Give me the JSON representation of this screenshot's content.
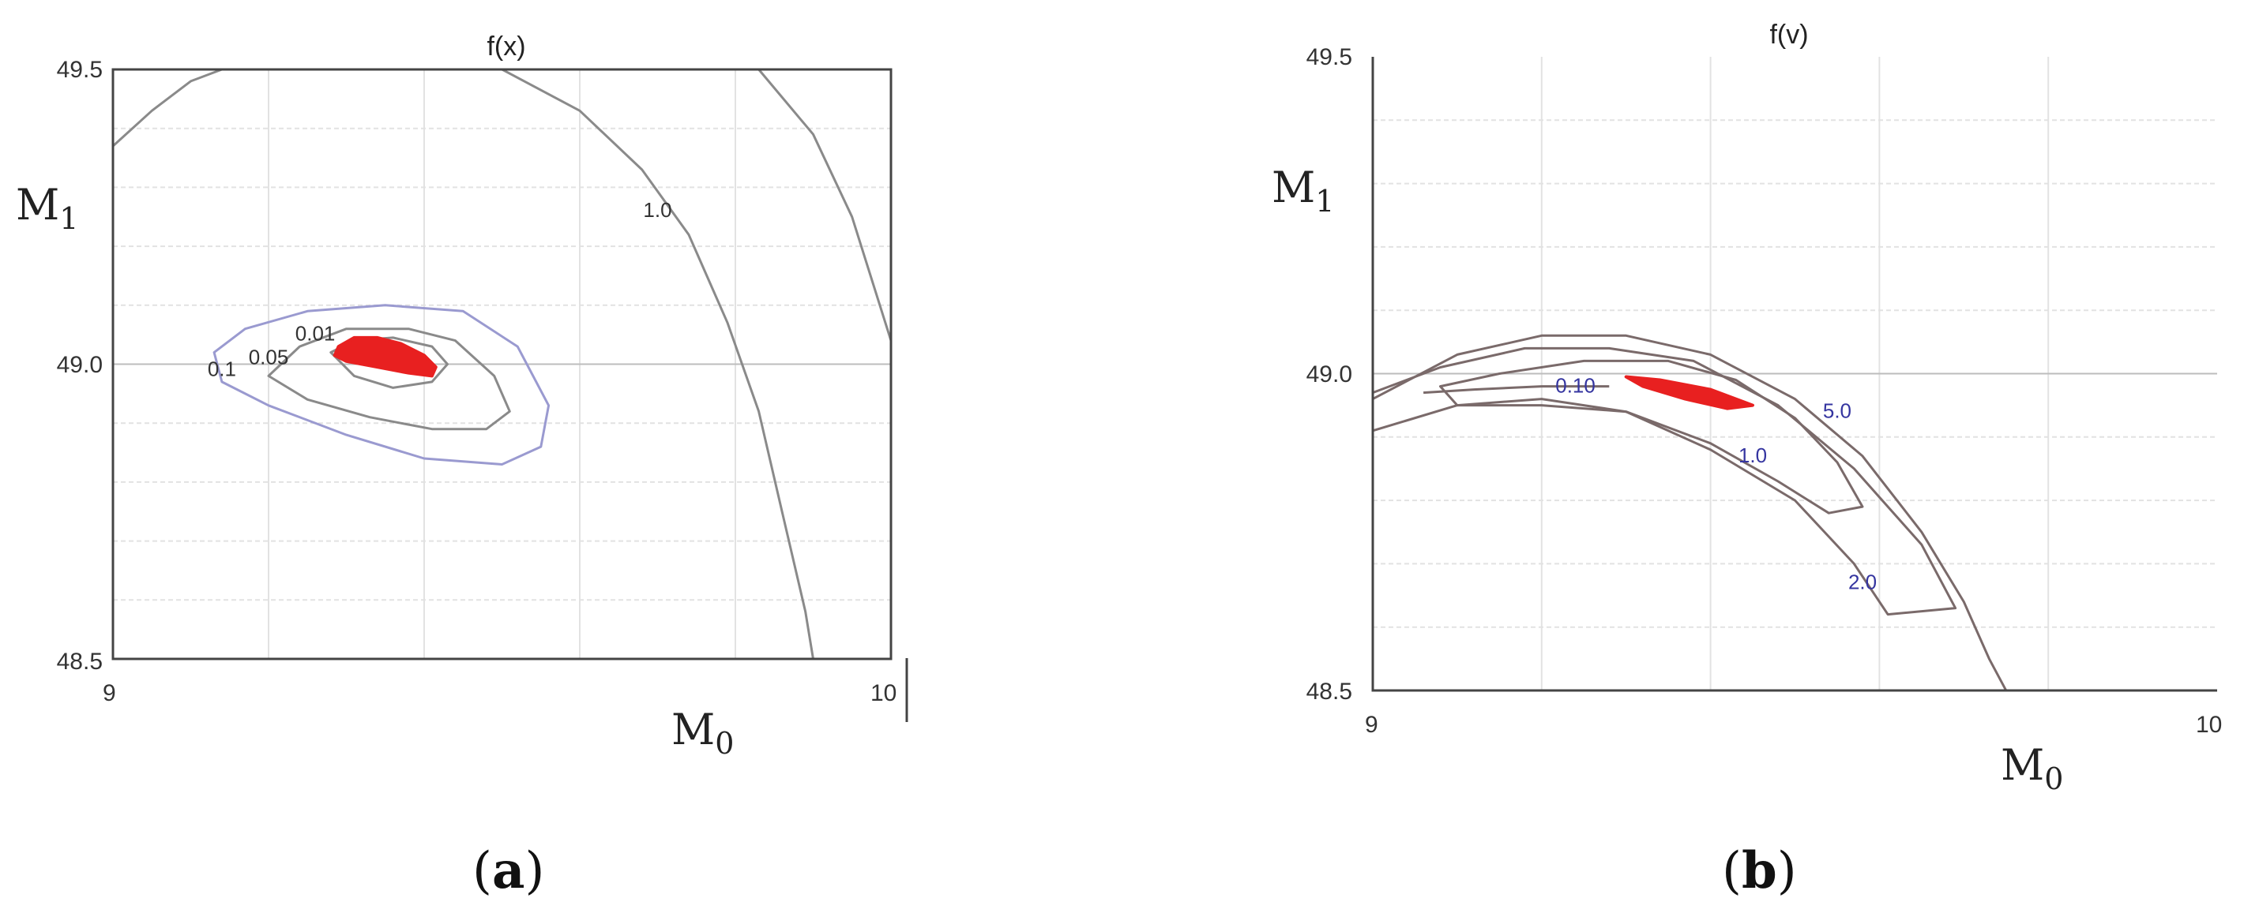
{
  "chart_data": [
    {
      "type": "contour",
      "panel_label": "a",
      "title": "f(x)",
      "xlabel": "M",
      "xlabel_sub": "0",
      "ylabel": "M",
      "ylabel_sub": "1",
      "xlim": [
        9,
        10
      ],
      "ylim": [
        48.5,
        49.5
      ],
      "x_ticks": [
        "9",
        "10"
      ],
      "y_ticks": [
        "49.5",
        "49.0",
        "48.5"
      ],
      "grid": true,
      "contours": [
        {
          "level": "1.0",
          "color": "#8a8a8a",
          "points": [
            [
              9.0,
              49.37
            ],
            [
              9.05,
              49.43
            ],
            [
              9.1,
              49.48
            ],
            [
              9.14,
              49.5
            ]
          ]
        },
        {
          "level": "1.0",
          "color": "#8a8a8a",
          "points": [
            [
              9.5,
              49.5
            ],
            [
              9.6,
              49.43
            ],
            [
              9.68,
              49.33
            ],
            [
              9.74,
              49.22
            ],
            [
              9.79,
              49.07
            ],
            [
              9.83,
              48.92
            ],
            [
              9.86,
              48.75
            ],
            [
              9.89,
              48.58
            ],
            [
              9.9,
              48.5
            ]
          ]
        },
        {
          "level": "",
          "color": "#8a8a8a",
          "points": [
            [
              9.83,
              49.5
            ],
            [
              9.9,
              49.39
            ],
            [
              9.95,
              49.25
            ],
            [
              10.0,
              49.04
            ]
          ]
        },
        {
          "level": "0.1",
          "color": "#9a9ad0",
          "closed": true,
          "points": [
            [
              9.13,
              49.02
            ],
            [
              9.17,
              49.06
            ],
            [
              9.25,
              49.09
            ],
            [
              9.35,
              49.1
            ],
            [
              9.45,
              49.09
            ],
            [
              9.52,
              49.03
            ],
            [
              9.56,
              48.93
            ],
            [
              9.55,
              48.86
            ],
            [
              9.5,
              48.83
            ],
            [
              9.4,
              48.84
            ],
            [
              9.3,
              48.88
            ],
            [
              9.2,
              48.93
            ],
            [
              9.14,
              48.97
            ]
          ]
        },
        {
          "level": "0.05",
          "color": "#8a8a8a",
          "closed": true,
          "points": [
            [
              9.2,
              48.98
            ],
            [
              9.24,
              49.03
            ],
            [
              9.3,
              49.06
            ],
            [
              9.38,
              49.06
            ],
            [
              9.44,
              49.04
            ],
            [
              9.49,
              48.98
            ],
            [
              9.51,
              48.92
            ],
            [
              9.48,
              48.89
            ],
            [
              9.41,
              48.89
            ],
            [
              9.33,
              48.91
            ],
            [
              9.25,
              48.94
            ]
          ]
        },
        {
          "level": "0.01",
          "color": "#8a8a8a",
          "closed": true,
          "points": [
            [
              9.28,
              49.02
            ],
            [
              9.31,
              49.04
            ],
            [
              9.36,
              49.045
            ],
            [
              9.41,
              49.03
            ],
            [
              9.43,
              49.0
            ],
            [
              9.41,
              48.97
            ],
            [
              9.36,
              48.96
            ],
            [
              9.31,
              48.98
            ]
          ]
        }
      ],
      "contour_labels": [
        {
          "text": "1.0",
          "x": 9.7,
          "y": 49.25
        },
        {
          "text": "0.1",
          "x": 9.14,
          "y": 48.98
        },
        {
          "text": "0.05",
          "x": 9.2,
          "y": 49.0
        },
        {
          "text": "0.01",
          "x": 9.26,
          "y": 49.04
        }
      ],
      "region": {
        "color": "#e82020",
        "points": [
          [
            9.29,
            49.03
          ],
          [
            9.31,
            49.045
          ],
          [
            9.34,
            49.045
          ],
          [
            9.37,
            49.035
          ],
          [
            9.4,
            49.015
          ],
          [
            9.415,
            48.995
          ],
          [
            9.41,
            48.98
          ],
          [
            9.38,
            48.985
          ],
          [
            9.34,
            48.995
          ],
          [
            9.3,
            49.005
          ],
          [
            9.285,
            49.015
          ]
        ]
      }
    },
    {
      "type": "contour",
      "panel_label": "b",
      "title": "f(v)",
      "xlabel": "M",
      "xlabel_sub": "0",
      "ylabel": "M",
      "ylabel_sub": "1",
      "xlim": [
        9,
        10
      ],
      "ylim": [
        48.5,
        49.5
      ],
      "x_ticks": [
        "9",
        "10"
      ],
      "y_ticks": [
        "49.5",
        "49.0",
        "48.5"
      ],
      "grid": true,
      "contours": [
        {
          "level": "5.0",
          "color": "#7a6a6a",
          "points": [
            [
              9.0,
              48.96
            ],
            [
              9.1,
              49.03
            ],
            [
              9.2,
              49.06
            ],
            [
              9.3,
              49.06
            ],
            [
              9.4,
              49.03
            ],
            [
              9.5,
              48.96
            ],
            [
              9.58,
              48.87
            ],
            [
              9.65,
              48.75
            ],
            [
              9.7,
              48.64
            ],
            [
              9.73,
              48.55
            ],
            [
              9.75,
              48.5
            ]
          ]
        },
        {
          "level": "2.0",
          "color": "#7a6a6a",
          "points": [
            [
              9.0,
              48.91
            ],
            [
              9.1,
              48.95
            ],
            [
              9.2,
              48.96
            ],
            [
              9.3,
              48.94
            ],
            [
              9.4,
              48.88
            ],
            [
              9.5,
              48.8
            ],
            [
              9.57,
              48.7
            ],
            [
              9.61,
              48.62
            ],
            [
              9.69,
              48.63
            ],
            [
              9.65,
              48.73
            ],
            [
              9.57,
              48.85
            ],
            [
              9.48,
              48.95
            ],
            [
              9.38,
              49.02
            ],
            [
              9.28,
              49.04
            ],
            [
              9.18,
              49.04
            ],
            [
              9.08,
              49.01
            ],
            [
              9.0,
              48.97
            ]
          ]
        },
        {
          "level": "1.0",
          "color": "#7a6a6a",
          "closed": true,
          "points": [
            [
              9.08,
              48.98
            ],
            [
              9.15,
              49.0
            ],
            [
              9.25,
              49.02
            ],
            [
              9.35,
              49.02
            ],
            [
              9.43,
              48.99
            ],
            [
              9.5,
              48.93
            ],
            [
              9.55,
              48.86
            ],
            [
              9.58,
              48.79
            ],
            [
              9.54,
              48.78
            ],
            [
              9.48,
              48.83
            ],
            [
              9.4,
              48.89
            ],
            [
              9.3,
              48.94
            ],
            [
              9.2,
              48.95
            ],
            [
              9.1,
              48.95
            ]
          ]
        },
        {
          "level": "0.10",
          "color": "#7a6a6a",
          "points": [
            [
              9.06,
              48.97
            ],
            [
              9.12,
              48.975
            ],
            [
              9.2,
              48.98
            ],
            [
              9.28,
              48.98
            ]
          ]
        }
      ],
      "contour_labels": [
        {
          "text": "0.10",
          "x": 9.24,
          "y": 48.97
        },
        {
          "text": "5.0",
          "x": 9.55,
          "y": 48.93
        },
        {
          "text": "1.0",
          "x": 9.45,
          "y": 48.86
        },
        {
          "text": "2.0",
          "x": 9.58,
          "y": 48.66
        }
      ],
      "region": {
        "color": "#e82020",
        "points": [
          [
            9.3,
            48.995
          ],
          [
            9.34,
            48.99
          ],
          [
            9.4,
            48.975
          ],
          [
            9.45,
            48.95
          ],
          [
            9.42,
            48.945
          ],
          [
            9.37,
            48.96
          ],
          [
            9.32,
            48.98
          ]
        ]
      }
    }
  ],
  "captions": {
    "a": {
      "open": "(",
      "letter": "a",
      "close": ")"
    },
    "b": {
      "open": "(",
      "letter": "b",
      "close": ")"
    }
  }
}
